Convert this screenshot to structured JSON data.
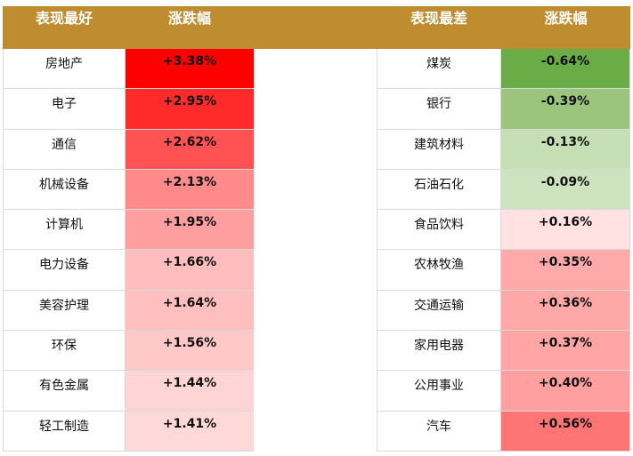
{
  "header": {
    "best": "表现最好",
    "best_change": "涨跌幅",
    "worst": "表现最差",
    "worst_change": "涨跌幅"
  },
  "best_rows": [
    {
      "name": "房地产",
      "change": "+3.38%",
      "color": "#ff0000"
    },
    {
      "name": "电子",
      "change": "+2.95%",
      "color": "#ff2b2b"
    },
    {
      "name": "通信",
      "change": "+2.62%",
      "color": "#ff5252"
    },
    {
      "name": "机械设备",
      "change": "+2.13%",
      "color": "#ff8a8a"
    },
    {
      "name": "计算机",
      "change": "+1.95%",
      "color": "#ff9e9e"
    },
    {
      "name": "电力设备",
      "change": "+1.66%",
      "color": "#ffbdbd"
    },
    {
      "name": "美容护理",
      "change": "+1.64%",
      "color": "#ffbfbf"
    },
    {
      "name": "环保",
      "change": "+1.56%",
      "color": "#ffc8c8"
    },
    {
      "name": "有色金属",
      "change": "+1.44%",
      "color": "#ffd4d4"
    },
    {
      "name": "轻工制造",
      "change": "+1.41%",
      "color": "#ffd8d8"
    }
  ],
  "worst_rows": [
    {
      "name": "煤炭",
      "change": "-0.64%",
      "color": "#6aac46"
    },
    {
      "name": "银行",
      "change": "-0.39%",
      "color": "#9bc57d"
    },
    {
      "name": "建筑材料",
      "change": "-0.13%",
      "color": "#c6deb4"
    },
    {
      "name": "石油石化",
      "change": "-0.09%",
      "color": "#cde2bf"
    },
    {
      "name": "食品饮料",
      "change": "+0.16%",
      "color": "#ffe1e1"
    },
    {
      "name": "农林牧渔",
      "change": "+0.35%",
      "color": "#ffaaaa"
    },
    {
      "name": "交通运输",
      "change": "+0.36%",
      "color": "#ffa8a8"
    },
    {
      "name": "家用电器",
      "change": "+0.37%",
      "color": "#ffa5a5"
    },
    {
      "name": "公用事业",
      "change": "+0.40%",
      "color": "#ff9f9f"
    },
    {
      "name": "汽车",
      "change": "+0.56%",
      "color": "#ff7575"
    }
  ]
}
